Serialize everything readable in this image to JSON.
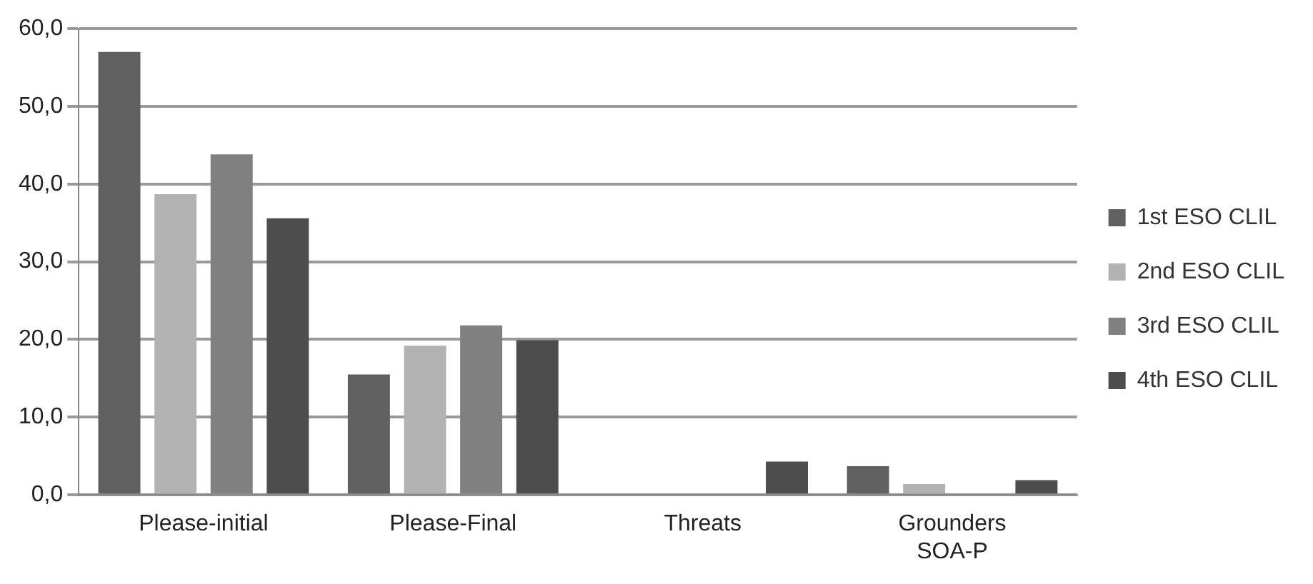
{
  "chart_data": {
    "type": "bar",
    "categories": [
      "Please-initial",
      "Please-Final",
      "Threats",
      "Grounders SOA-P"
    ],
    "series": [
      {
        "name": "1st ESO CLIL",
        "color": "#606060",
        "values": [
          57.0,
          15.5,
          0,
          3.7
        ]
      },
      {
        "name": "2nd ESO CLIL",
        "color": "#b2b2b2",
        "values": [
          38.7,
          19.2,
          0,
          1.4
        ]
      },
      {
        "name": "3rd ESO CLIL",
        "color": "#808080",
        "values": [
          43.8,
          21.8,
          0,
          0
        ]
      },
      {
        "name": "4th ESO CLIL",
        "color": "#4d4d4d",
        "values": [
          35.6,
          19.9,
          4.3,
          1.9
        ]
      }
    ],
    "ylim": [
      0,
      60
    ],
    "yticks": [
      {
        "value": 0,
        "label": "0,0"
      },
      {
        "value": 10,
        "label": "10,0"
      },
      {
        "value": 20,
        "label": "20,0"
      },
      {
        "value": 30,
        "label": "30,0"
      },
      {
        "value": 40,
        "label": "40,0"
      },
      {
        "value": 50,
        "label": "50,0"
      },
      {
        "value": 60,
        "label": "60,0"
      }
    ],
    "grid": "y",
    "legend": "right"
  }
}
